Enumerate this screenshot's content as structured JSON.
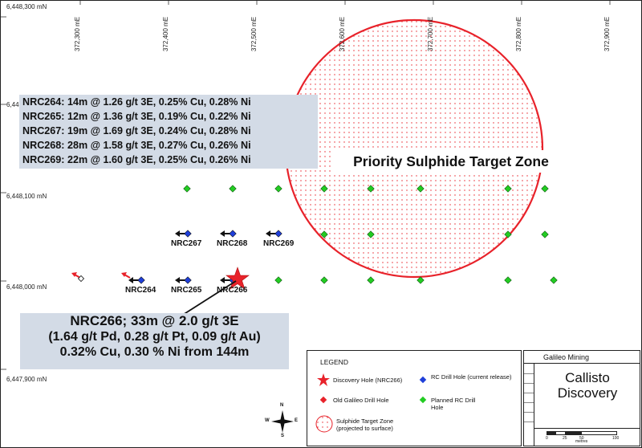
{
  "map": {
    "northings": [
      "6,448,300 mN",
      "6,44",
      "6,448,100 mN",
      "6,448,000 mN",
      "6,447,900 mN"
    ],
    "eastings": [
      "372,300 mE",
      "372,400 mE",
      "372,500 mE",
      "372,600 mE",
      "372,700 mE",
      "372,800 mE",
      "372,900 mE"
    ],
    "target_zone_label": "Priority Sulphide Target Zone",
    "colors": {
      "target_zone": "#e8222a",
      "rc_hole": "#1f3fd9",
      "old_hole": "#e8222a",
      "planned_hole": "#22cc22",
      "discovery": "#e8222a",
      "result_box": "#d3dbe6"
    }
  },
  "results": [
    "NRC264: 14m @ 1.26 g/t 3E, 0.25% Cu, 0.28% Ni",
    "NRC265: 12m @ 1.36 g/t 3E, 0.19% Cu, 0.22% Ni",
    "NRC267: 19m @ 1.69 g/t 3E, 0.24% Cu, 0.28% Ni",
    "NRC268: 28m @ 1.58 g/t 3E, 0.27% Cu, 0.26% Ni",
    "NRC269: 22m @ 1.60 g/t 3E, 0.25% Cu, 0.26% Ni"
  ],
  "discovery_callout": {
    "line1": "NRC266; 33m @ 2.0 g/t 3E",
    "line2": "(1.64 g/t Pd, 0.28 g/t Pt, 0.09 g/t Au)",
    "line3": "0.32% Cu, 0.30 % Ni from 144m"
  },
  "drill_holes": {
    "nrc264": "NRC264",
    "nrc265": "NRC265",
    "nrc266": "NRC266",
    "nrc267": "NRC267",
    "nrc268": "NRC268",
    "nrc269": "NRC269"
  },
  "legend": {
    "title": "LEGEND",
    "discovery": "Discovery Hole (NRC266)",
    "rc_current": "RC Drill Hole (current release)",
    "old_galileo": "Old Galileo Drill Hole",
    "planned": "Planned RC Drill Hole",
    "target_zone": "Sulphide Target Zone (projected to surface)"
  },
  "title_block": {
    "company": "Galileo Mining",
    "project": "Callisto Discovery",
    "scale_ticks": [
      "0",
      "25",
      "50",
      "100"
    ],
    "scale_unit": "metres"
  },
  "compass": {
    "n": "N",
    "s": "S",
    "e": "E",
    "w": "W"
  }
}
